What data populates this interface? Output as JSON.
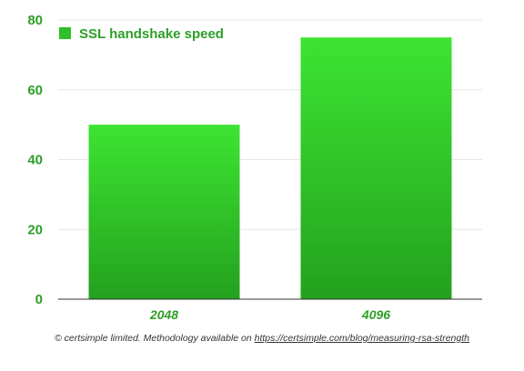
{
  "chart_data": {
    "type": "bar",
    "categories": [
      "2048",
      "4096"
    ],
    "series": [
      {
        "name": "SSL handshake speed",
        "values": [
          50,
          75
        ]
      }
    ],
    "title": "",
    "xlabel": "",
    "ylabel": "",
    "ylim": [
      0,
      80
    ],
    "yticks": [
      0,
      20,
      40,
      60,
      80
    ],
    "grid": true,
    "legend_position": "top-left",
    "colors": {
      "bar_top": "#3de432",
      "bar_bottom": "#24a11f",
      "legend_swatch": "#2fbf28",
      "text": "#2e9e27",
      "grid": "#e6e6e6",
      "axis": "#333333"
    }
  },
  "footer": {
    "text": "© certsimple limited. Methodology available on ",
    "link": "https://certsimple.com/blog/measuring-rsa-strength"
  }
}
